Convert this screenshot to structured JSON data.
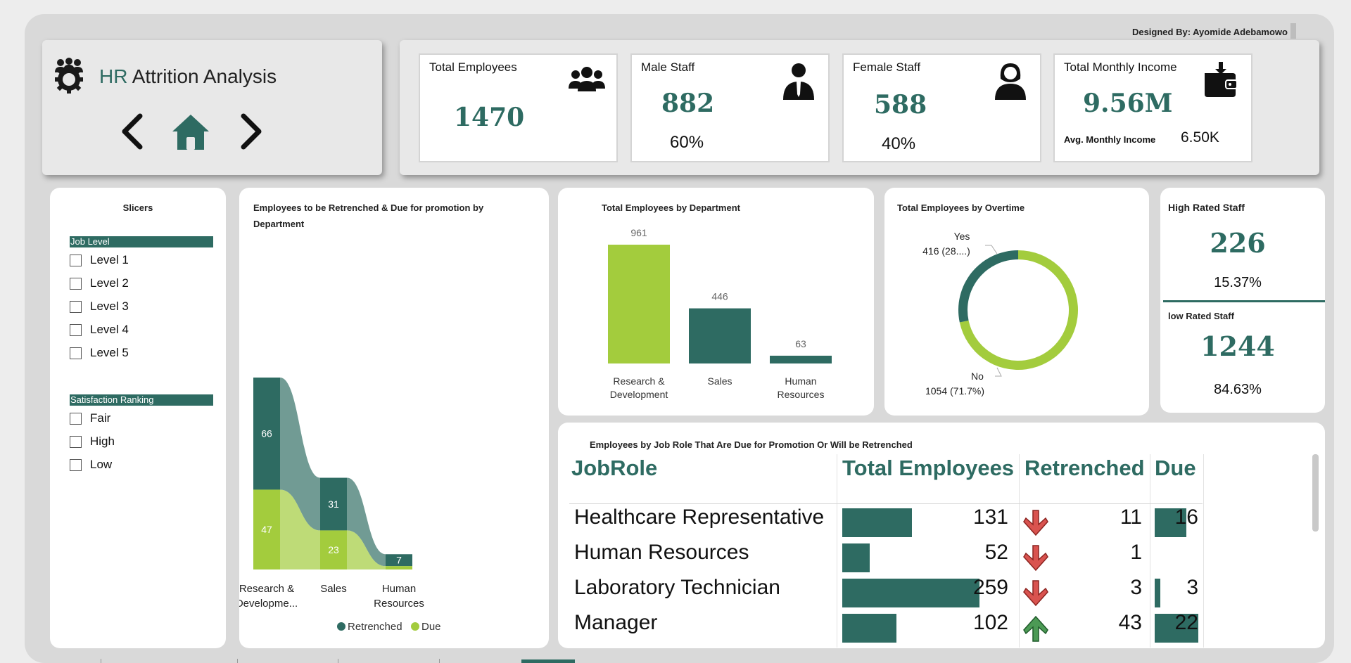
{
  "header": {
    "designer": "Designed By: Ayomide Adebamowo",
    "title_prefix": "HR",
    "title_rest": " Attrition Analysis",
    "icons": {
      "logo": "people-gear-icon",
      "prev": "chevron-left-icon",
      "home": "home-icon",
      "next": "chevron-right-icon"
    }
  },
  "kpis": {
    "total_employees": {
      "label": "Total Employees",
      "value": "1470",
      "icon": "group-icon"
    },
    "male_staff": {
      "label": "Male Staff",
      "value": "882",
      "pct": "60%",
      "icon": "male-icon"
    },
    "female_staff": {
      "label": "Female Staff",
      "value": "588",
      "pct": "40%",
      "icon": "female-icon"
    },
    "income": {
      "label": "Total Monthly Income",
      "value": "9.56M",
      "avg_label": "Avg. Monthly Income",
      "avg_value": "6.50K",
      "icon": "wallet-icon"
    }
  },
  "slicers": {
    "title": "Slicers",
    "job_level": {
      "header": "Job Level",
      "items": [
        "Level 1",
        "Level 2",
        "Level 3",
        "Level 4",
        "Level 5"
      ]
    },
    "satisfaction": {
      "header": "Satisfaction Ranking",
      "items": [
        "Fair",
        "High",
        "Low"
      ]
    }
  },
  "sankey": {
    "title": "Employees to be Retrenched & Due for promotion by Department",
    "chart_data": {
      "type": "ribbon",
      "categories": [
        "Research & Developme...",
        "Sales",
        "Human Resources"
      ],
      "series": [
        {
          "name": "Retrenched",
          "values": [
            66,
            31,
            7
          ]
        },
        {
          "name": "Due",
          "values": [
            47,
            23,
            2
          ]
        }
      ],
      "data_labels": {
        "Retrenched": [
          "66",
          "31",
          "7"
        ],
        "Due": [
          "47",
          "23",
          ""
        ]
      },
      "legend": [
        "Retrenched",
        "Due"
      ],
      "legend_position": "bottom-center"
    }
  },
  "dept_chart": {
    "title": "Total Employees by Department",
    "chart_data": {
      "type": "bar",
      "categories": [
        "Research & Development",
        "Sales",
        "Human Resources"
      ],
      "values": [
        961,
        446,
        63
      ],
      "colors": [
        "#a3cc3d",
        "#2e6b62",
        "#2e6b62"
      ]
    }
  },
  "overtime": {
    "title": "Total Employees by Overtime",
    "chart_data": {
      "type": "pie",
      "donut": true,
      "labels": [
        "Yes",
        "No"
      ],
      "values": [
        416,
        1054
      ],
      "data_labels": [
        "416 (28....)",
        "1054 (71.7%)"
      ],
      "colors": [
        "#2e6b62",
        "#a3cc3d"
      ]
    }
  },
  "rated": {
    "high_label": "High Rated Staff",
    "high_value": "226",
    "high_pct": "15.37%",
    "low_label": "low Rated Staff",
    "low_value": "1244",
    "low_pct": "84.63%"
  },
  "table": {
    "title": "Employees by Job Role That Are Due for Promotion Or Will be Retrenched",
    "columns": [
      "JobRole",
      "Total Employees",
      "Retrenched",
      "Due"
    ],
    "rows": [
      {
        "role": "Healthcare Representative",
        "total": "131",
        "total_frac": 0.506,
        "arrow": "down-arrow-icon",
        "retrenched": "11",
        "due": "16",
        "due_frac": 0.727
      },
      {
        "role": "Human Resources",
        "total": "52",
        "total_frac": 0.201,
        "arrow": "down-arrow-icon",
        "retrenched": "1",
        "due": "",
        "due_frac": 0
      },
      {
        "role": "Laboratory Technician",
        "total": "259",
        "total_frac": 1.0,
        "arrow": "down-arrow-icon",
        "retrenched": "3",
        "due": "3",
        "due_frac": 0.136
      },
      {
        "role": "Manager",
        "total": "102",
        "total_frac": 0.394,
        "arrow": "up-arrow-icon",
        "retrenched": "43",
        "due": "22",
        "due_frac": 1.0
      }
    ]
  },
  "colors": {
    "teal": "#2e6b62",
    "green": "#a3cc3d",
    "arrow_red": "#d9534f",
    "arrow_green": "#4c9a55"
  }
}
